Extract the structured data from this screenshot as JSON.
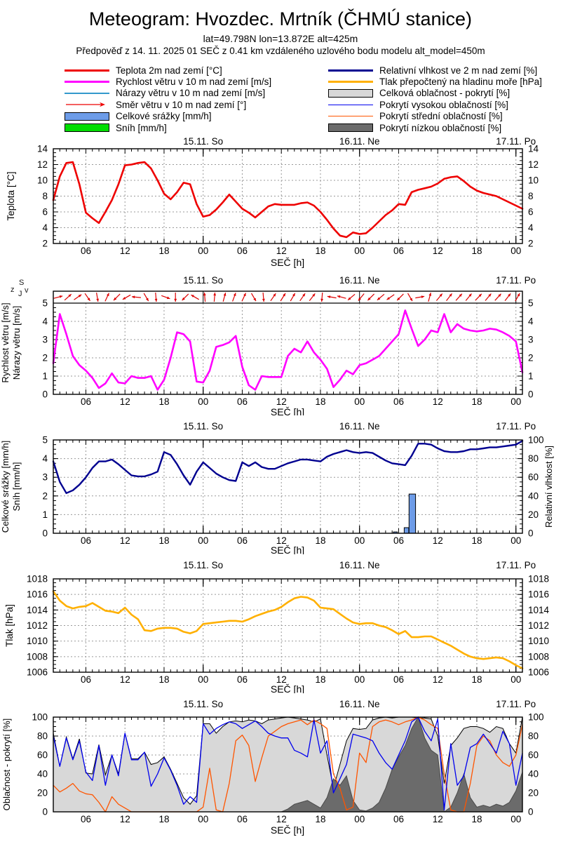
{
  "header": {
    "title": "Meteogram: Hvozdec. Mrtník (ČHMÚ stanice)",
    "subtitle1": "lat=49.798N lon=13.872E alt=425m",
    "subtitle2": "Předpověď z 14. 11. 2025 01 SEČ z 0.41 km vzdáleného uzlového bodu modelu alt_model=450m"
  },
  "legend": {
    "left": [
      {
        "label": "Teplota 2m nad zemí [°C]",
        "swatch": "line",
        "color": "#ee0000"
      },
      {
        "label": "Rychlost větru v 10 m nad zemí [m/s]",
        "swatch": "line",
        "color": "#ff00ff"
      },
      {
        "label": "Nárazy větru v 10 m nad zemí [m/s]",
        "swatch": "thinline",
        "color": "#3399cc"
      },
      {
        "label": "Směr větru v 10 m nad zemí [°]",
        "swatch": "arrow",
        "color": "#ee0000"
      },
      {
        "label": "Celkové srážky [mm/h]",
        "swatch": "box",
        "color": "#6d9ce8"
      },
      {
        "label": "Sníh [mm/h]",
        "swatch": "box",
        "color": "#00dd00"
      }
    ],
    "right": [
      {
        "label": "Relativní vlhkost ve 2 m nad zemí [%]",
        "swatch": "line",
        "color": "#000090"
      },
      {
        "label": "Tlak přepočtený na hladinu moře [hPa]",
        "swatch": "line",
        "color": "#ffb000"
      },
      {
        "label": "Celková oblačnost - pokrytí [%]",
        "swatch": "box",
        "color": "#d8d8d8"
      },
      {
        "label": "Pokrytí vysokou oblačností [%]",
        "swatch": "thinline",
        "color": "#0000ee"
      },
      {
        "label": "Pokrytí střední oblačností [%]",
        "swatch": "thinline",
        "color": "#ff5500"
      },
      {
        "label": "Pokrytí nízkou oblačností [%]",
        "swatch": "box",
        "color": "#6b6b6b"
      }
    ]
  },
  "compass": {
    "top": "S",
    "right": "v",
    "bottom": "J",
    "left": "z"
  },
  "time_axis": {
    "hours_span": 72,
    "x_label": "SEČ [h]",
    "tick_hours": [
      5,
      11,
      17,
      23,
      29,
      35,
      41,
      47,
      53,
      59,
      65,
      71
    ],
    "tick_labels": [
      "06",
      "12",
      "18",
      "00",
      "06",
      "12",
      "18",
      "00",
      "06",
      "12",
      "18",
      "00"
    ],
    "day_marks": [
      {
        "hour": 23,
        "label": "15.11. So"
      },
      {
        "hour": 47,
        "label": "16.11. Ne"
      },
      {
        "hour": 71,
        "label": "17.11. Po"
      }
    ]
  },
  "chart_data": [
    {
      "id": "temperature",
      "type": "line",
      "ylabel": "Teplota [°C]",
      "ymin": 2,
      "ymax": 14,
      "ystep": 2,
      "series": [
        {
          "name": "Teplota 2m nad zemí [°C]",
          "color": "#ee0000",
          "width": 2.6,
          "values": [
            7.5,
            10.5,
            12.2,
            12.3,
            9.5,
            5.9,
            5.2,
            4.6,
            6.0,
            7.5,
            9.5,
            11.9,
            12.0,
            12.2,
            12.3,
            11.5,
            10.0,
            8.3,
            7.6,
            8.5,
            9.7,
            9.5,
            7.0,
            5.4,
            5.6,
            6.3,
            7.2,
            8.2,
            7.3,
            6.4,
            5.9,
            5.3,
            6.0,
            6.7,
            7.0,
            6.9,
            6.9,
            6.9,
            7.1,
            7.2,
            6.8,
            6.0,
            5.0,
            3.9,
            3.0,
            2.8,
            3.4,
            3.2,
            3.3,
            4.0,
            4.8,
            5.6,
            6.2,
            7.0,
            6.9,
            8.5,
            8.8,
            9.0,
            9.2,
            9.6,
            10.2,
            10.4,
            10.5,
            9.9,
            9.2,
            8.7,
            8.4,
            8.2,
            8.0,
            7.6,
            7.2,
            6.8,
            6.4
          ]
        }
      ]
    },
    {
      "id": "wind",
      "type": "line+arrows",
      "ylabel_lines": [
        "Rychlost větru [m/s]",
        "Nárazy větru [m/s]"
      ],
      "ymin": 0,
      "ymax": 5,
      "ystep": 1,
      "series": [
        {
          "name": "Rychlost větru v 10 m nad zemí [m/s]",
          "color": "#ff00ff",
          "width": 2.6,
          "values": [
            1.7,
            4.4,
            3.3,
            2.1,
            1.6,
            1.3,
            0.9,
            0.35,
            0.6,
            1.15,
            0.65,
            0.6,
            1.0,
            0.9,
            0.9,
            1.0,
            0.25,
            0.8,
            2.0,
            3.4,
            3.3,
            2.9,
            0.7,
            0.65,
            1.3,
            2.6,
            2.7,
            2.85,
            3.2,
            1.5,
            0.5,
            0.25,
            1.0,
            0.95,
            0.95,
            0.95,
            2.1,
            2.5,
            2.3,
            2.9,
            2.3,
            1.9,
            1.4,
            0.4,
            0.8,
            1.3,
            1.1,
            1.6,
            1.7,
            1.9,
            2.1,
            2.5,
            2.9,
            3.3,
            4.6,
            3.6,
            2.65,
            3.0,
            3.5,
            3.4,
            4.4,
            3.4,
            3.85,
            3.6,
            3.5,
            3.45,
            3.5,
            3.6,
            3.55,
            3.4,
            3.2,
            2.9,
            1.2
          ]
        }
      ],
      "wind_direction_deg": [
        15,
        42,
        35,
        -55,
        -80,
        65,
        -135,
        -150,
        175,
        -60,
        -85,
        -20,
        -90,
        -135,
        150,
        95,
        85,
        75,
        70,
        65,
        -60,
        -85,
        55,
        58,
        60,
        55,
        52,
        -95,
        170,
        165,
        -140,
        -130,
        -135,
        -140,
        -145,
        -135,
        -60,
        10,
        75,
        50,
        52,
        48,
        50,
        46,
        50,
        48,
        52,
        60
      ],
      "arrow_color": "#dd0000"
    },
    {
      "id": "precip-humidity",
      "type": "bar+line",
      "ylabel_left_lines": [
        "Celkové srážky [mm/h]",
        "Sníh [mm/h]"
      ],
      "ylabel_right": "Relativní vlhkost [%]",
      "yleft_min": 0,
      "yleft_max": 5,
      "yleft_step": 1,
      "yright_min": 0,
      "yright_max": 100,
      "yright_step": 20,
      "bars": {
        "name": "Celkové srážky [mm/h]",
        "color": "#6d9ce8",
        "points": [
          {
            "hour": 52.5,
            "value": 0.07,
            "width_h": 0.6
          },
          {
            "hour": 54.2,
            "value": 0.3,
            "width_h": 0.7
          },
          {
            "hour": 55.1,
            "value": 2.1,
            "width_h": 1.0
          }
        ]
      },
      "series": [
        {
          "name": "Relativní vlhkost ve 2 m nad zemí [%]",
          "color": "#000090",
          "width": 2.4,
          "axis": "right",
          "values": [
            77,
            55,
            43,
            46,
            52,
            60,
            70,
            77,
            77,
            79,
            74,
            68,
            62,
            61,
            61,
            63,
            66,
            87,
            84,
            74,
            62,
            52,
            66,
            76,
            70,
            64,
            60,
            57,
            56,
            76,
            72,
            76,
            71,
            69,
            69,
            72,
            75,
            77,
            79,
            79,
            78,
            77,
            82,
            85,
            87,
            89,
            87,
            86,
            87,
            86,
            82,
            78,
            75,
            74,
            73,
            83,
            96,
            96,
            95,
            91,
            88,
            87,
            87,
            88,
            90,
            90,
            91,
            92,
            92,
            93,
            94,
            95,
            99
          ]
        }
      ]
    },
    {
      "id": "pressure",
      "type": "line",
      "ylabel": "Tlak [hPa]",
      "ymin": 1006,
      "ymax": 1018,
      "ystep": 2,
      "series": [
        {
          "name": "Tlak přepočtený na hladinu moře [hPa]",
          "color": "#ffb000",
          "width": 2.6,
          "values": [
            1016.4,
            1015.2,
            1014.5,
            1014.2,
            1014.4,
            1014.5,
            1014.9,
            1014.4,
            1013.9,
            1013.8,
            1013.6,
            1014.3,
            1013.4,
            1012.8,
            1011.4,
            1011.3,
            1011.6,
            1011.7,
            1011.7,
            1011.6,
            1011.2,
            1011.0,
            1011.3,
            1012.2,
            1012.3,
            1012.4,
            1012.5,
            1012.6,
            1012.6,
            1012.5,
            1012.8,
            1013.2,
            1013.5,
            1013.8,
            1014.0,
            1014.4,
            1015.0,
            1015.5,
            1015.7,
            1015.6,
            1015.2,
            1014.3,
            1014.2,
            1014.1,
            1013.5,
            1012.9,
            1012.4,
            1012.2,
            1012.3,
            1012.3,
            1012.0,
            1011.8,
            1011.4,
            1010.9,
            1011.3,
            1010.5,
            1010.5,
            1010.6,
            1010.6,
            1010.2,
            1009.8,
            1009.4,
            1008.9,
            1008.4,
            1008.0,
            1007.8,
            1007.7,
            1007.8,
            1007.9,
            1007.8,
            1007.4,
            1006.9,
            1006.5
          ]
        }
      ]
    },
    {
      "id": "clouds",
      "type": "area+line",
      "ylabel": "Oblačnost - pokrytí [%]",
      "ymin": 0,
      "ymax": 100,
      "ystep": 20,
      "areas": [
        {
          "name": "Celková oblačnost - pokrytí [%]",
          "fill": "#d8d8d8",
          "stroke": "#000000",
          "values": [
            83,
            48,
            79,
            56,
            77,
            41,
            40,
            71,
            39,
            60,
            40,
            83,
            56,
            56,
            63,
            50,
            52,
            58,
            45,
            30,
            15,
            8,
            17,
            93,
            93,
            83,
            90,
            95,
            96,
            95,
            97,
            96,
            93,
            97,
            98,
            99,
            100,
            99,
            98,
            97,
            95,
            98,
            60,
            25,
            50,
            75,
            88,
            87,
            88,
            97,
            99,
            100,
            99,
            100,
            100,
            100,
            99,
            99,
            98,
            80,
            30,
            70,
            78,
            88,
            90,
            90,
            88,
            84,
            90,
            88,
            72,
            62,
            100
          ]
        },
        {
          "name": "Pokrytí nízkou oblačností [%]",
          "fill": "#6b6b6b",
          "stroke": "#4a4a4a",
          "values": [
            0,
            0,
            0,
            0,
            0,
            0,
            0,
            0,
            0,
            0,
            0,
            0,
            0,
            0,
            0,
            0,
            0,
            0,
            0,
            0,
            0,
            0,
            0,
            0,
            0,
            0,
            0,
            0,
            0,
            0,
            0,
            0,
            0,
            0,
            0,
            0,
            3,
            8,
            10,
            12,
            8,
            4,
            15,
            35,
            28,
            38,
            12,
            2,
            1,
            4,
            10,
            25,
            45,
            58,
            70,
            88,
            100,
            78,
            65,
            60,
            0,
            5,
            20,
            40,
            15,
            5,
            7,
            5,
            8,
            6,
            10,
            22,
            42
          ]
        }
      ],
      "series": [
        {
          "name": "Pokrytí střední oblačností [%]",
          "color": "#ff5500",
          "width": 1.3,
          "values": [
            28,
            21,
            25,
            30,
            22,
            19,
            18,
            10,
            0,
            16,
            8,
            4,
            0,
            0,
            0,
            0,
            0,
            0,
            0,
            0,
            0,
            0,
            0,
            5,
            46,
            2,
            0,
            30,
            75,
            81,
            70,
            32,
            57,
            80,
            85,
            90,
            93,
            95,
            97,
            92,
            97,
            93,
            88,
            40,
            25,
            2,
            5,
            62,
            52,
            90,
            95,
            97,
            95,
            92,
            95,
            97,
            100,
            97,
            92,
            88,
            40,
            2,
            0,
            0,
            30,
            70,
            80,
            75,
            60,
            52,
            48,
            60,
            92
          ]
        },
        {
          "name": "Pokrytí vysokou oblačností [%]",
          "color": "#0000ee",
          "width": 1.3,
          "values": [
            80,
            48,
            78,
            55,
            75,
            42,
            33,
            70,
            28,
            60,
            38,
            83,
            55,
            55,
            63,
            27,
            40,
            57,
            44,
            28,
            8,
            16,
            10,
            93,
            82,
            88,
            92,
            95,
            93,
            88,
            92,
            96,
            90,
            83,
            80,
            78,
            78,
            65,
            62,
            58,
            97,
            62,
            75,
            20,
            35,
            50,
            82,
            80,
            78,
            75,
            62,
            52,
            45,
            60,
            75,
            95,
            100,
            85,
            75,
            98,
            2,
            72,
            28,
            38,
            68,
            72,
            82,
            72,
            62,
            85,
            72,
            28,
            62
          ]
        }
      ]
    }
  ]
}
